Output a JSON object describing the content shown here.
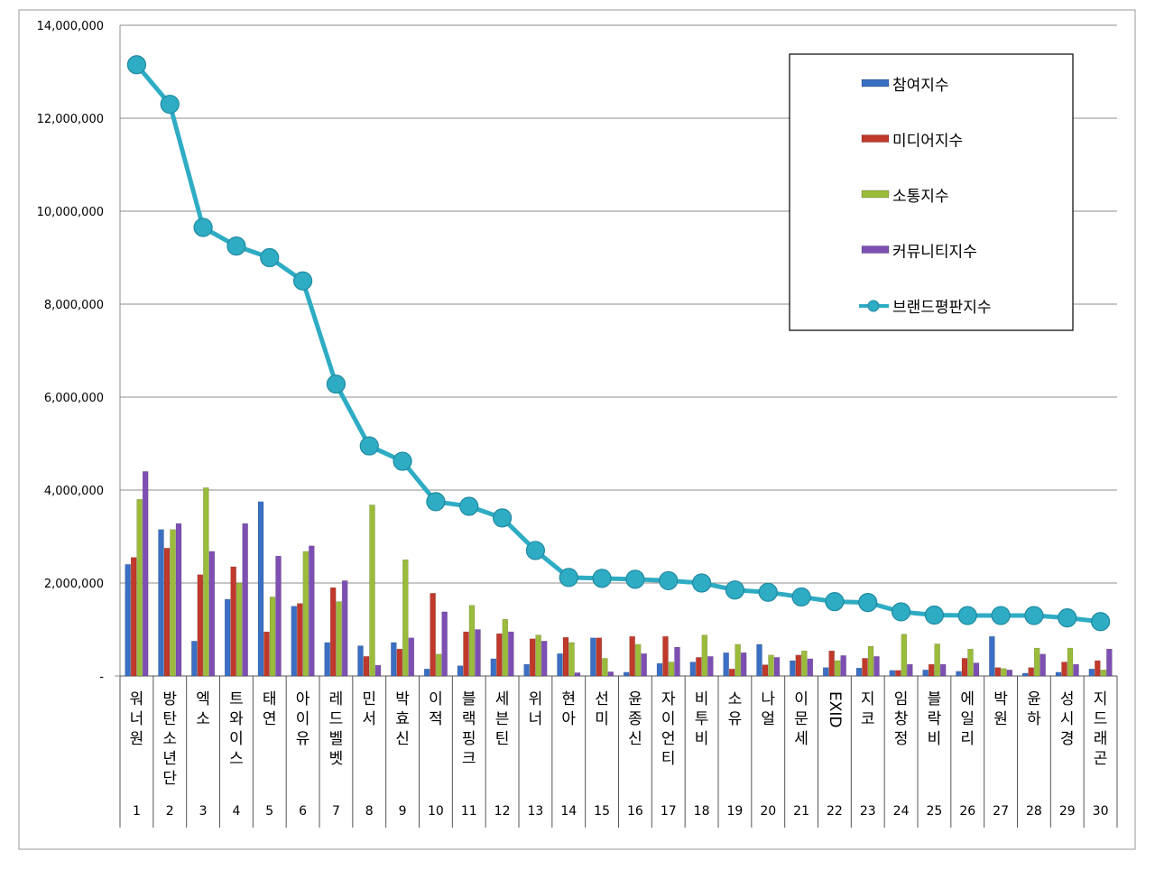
{
  "chart_data": {
    "type": "bar",
    "title": "",
    "xlabel": "",
    "ylabel": "",
    "ylim": [
      0,
      14000000
    ],
    "yticks": [
      {
        "value": 0,
        "label": "-"
      },
      {
        "value": 2000000,
        "label": "2,000,000"
      },
      {
        "value": 4000000,
        "label": "4,000,000"
      },
      {
        "value": 6000000,
        "label": "6,000,000"
      },
      {
        "value": 8000000,
        "label": "8,000,000"
      },
      {
        "value": 10000000,
        "label": "10,000,000"
      },
      {
        "value": 12000000,
        "label": "12,000,000"
      },
      {
        "value": 14000000,
        "label": "14,000,000"
      }
    ],
    "grid": true,
    "legend_position": "top-right",
    "categories": [
      "워너원",
      "방탄소년단",
      "엑소",
      "트와이스",
      "태연",
      "아이유",
      "레드벨벳",
      "민서",
      "박효신",
      "이적",
      "블랙핑크",
      "세븐틴",
      "위너",
      "현아",
      "선미",
      "윤종신",
      "자이언티",
      "비투비",
      "소유",
      "나얼",
      "이문세",
      "EXID",
      "지코",
      "임창정",
      "블락비",
      "에일리",
      "박원",
      "윤하",
      "성시경",
      "지드래곤"
    ],
    "ranks": [
      "1",
      "2",
      "3",
      "4",
      "5",
      "6",
      "7",
      "8",
      "9",
      "10",
      "11",
      "12",
      "13",
      "14",
      "15",
      "16",
      "17",
      "18",
      "19",
      "20",
      "21",
      "22",
      "23",
      "24",
      "25",
      "26",
      "27",
      "28",
      "29",
      "30"
    ],
    "series": [
      {
        "name": "참여지수",
        "type": "bar",
        "color": "#3a6fc4",
        "values": [
          2400000,
          3150000,
          750000,
          1650000,
          3750000,
          1500000,
          720000,
          650000,
          720000,
          150000,
          220000,
          370000,
          250000,
          480000,
          820000,
          80000,
          270000,
          300000,
          500000,
          680000,
          330000,
          180000,
          170000,
          120000,
          130000,
          100000,
          850000,
          60000,
          80000,
          150000
        ]
      },
      {
        "name": "미디어지수",
        "type": "bar",
        "color": "#c0392b",
        "values": [
          2550000,
          2750000,
          2180000,
          2350000,
          950000,
          1560000,
          1900000,
          420000,
          580000,
          1780000,
          950000,
          910000,
          800000,
          830000,
          820000,
          850000,
          850000,
          400000,
          150000,
          240000,
          450000,
          540000,
          380000,
          120000,
          250000,
          380000,
          180000,
          180000,
          300000,
          330000
        ]
      },
      {
        "name": "소통지수",
        "type": "bar",
        "color": "#9bbb3b",
        "values": [
          3800000,
          3150000,
          4050000,
          2000000,
          1700000,
          2680000,
          1600000,
          3680000,
          2500000,
          470000,
          1520000,
          1220000,
          880000,
          720000,
          380000,
          680000,
          300000,
          880000,
          680000,
          450000,
          540000,
          330000,
          640000,
          900000,
          690000,
          580000,
          160000,
          600000,
          600000,
          130000
        ]
      },
      {
        "name": "커뮤니티지수",
        "type": "bar",
        "color": "#7d4fb3",
        "values": [
          4400000,
          3280000,
          2680000,
          3280000,
          2580000,
          2800000,
          2050000,
          230000,
          820000,
          1380000,
          1000000,
          950000,
          750000,
          70000,
          90000,
          480000,
          620000,
          420000,
          500000,
          400000,
          370000,
          440000,
          420000,
          250000,
          250000,
          280000,
          130000,
          470000,
          250000,
          580000
        ]
      },
      {
        "name": "브랜드평판지수",
        "type": "line",
        "color": "#2eacc4",
        "values": [
          13150000,
          12300000,
          9650000,
          9250000,
          9000000,
          8500000,
          6280000,
          4950000,
          4620000,
          3750000,
          3650000,
          3400000,
          2700000,
          2120000,
          2100000,
          2080000,
          2050000,
          2000000,
          1850000,
          1800000,
          1700000,
          1600000,
          1580000,
          1380000,
          1310000,
          1300000,
          1300000,
          1300000,
          1250000,
          1170000
        ]
      }
    ]
  }
}
